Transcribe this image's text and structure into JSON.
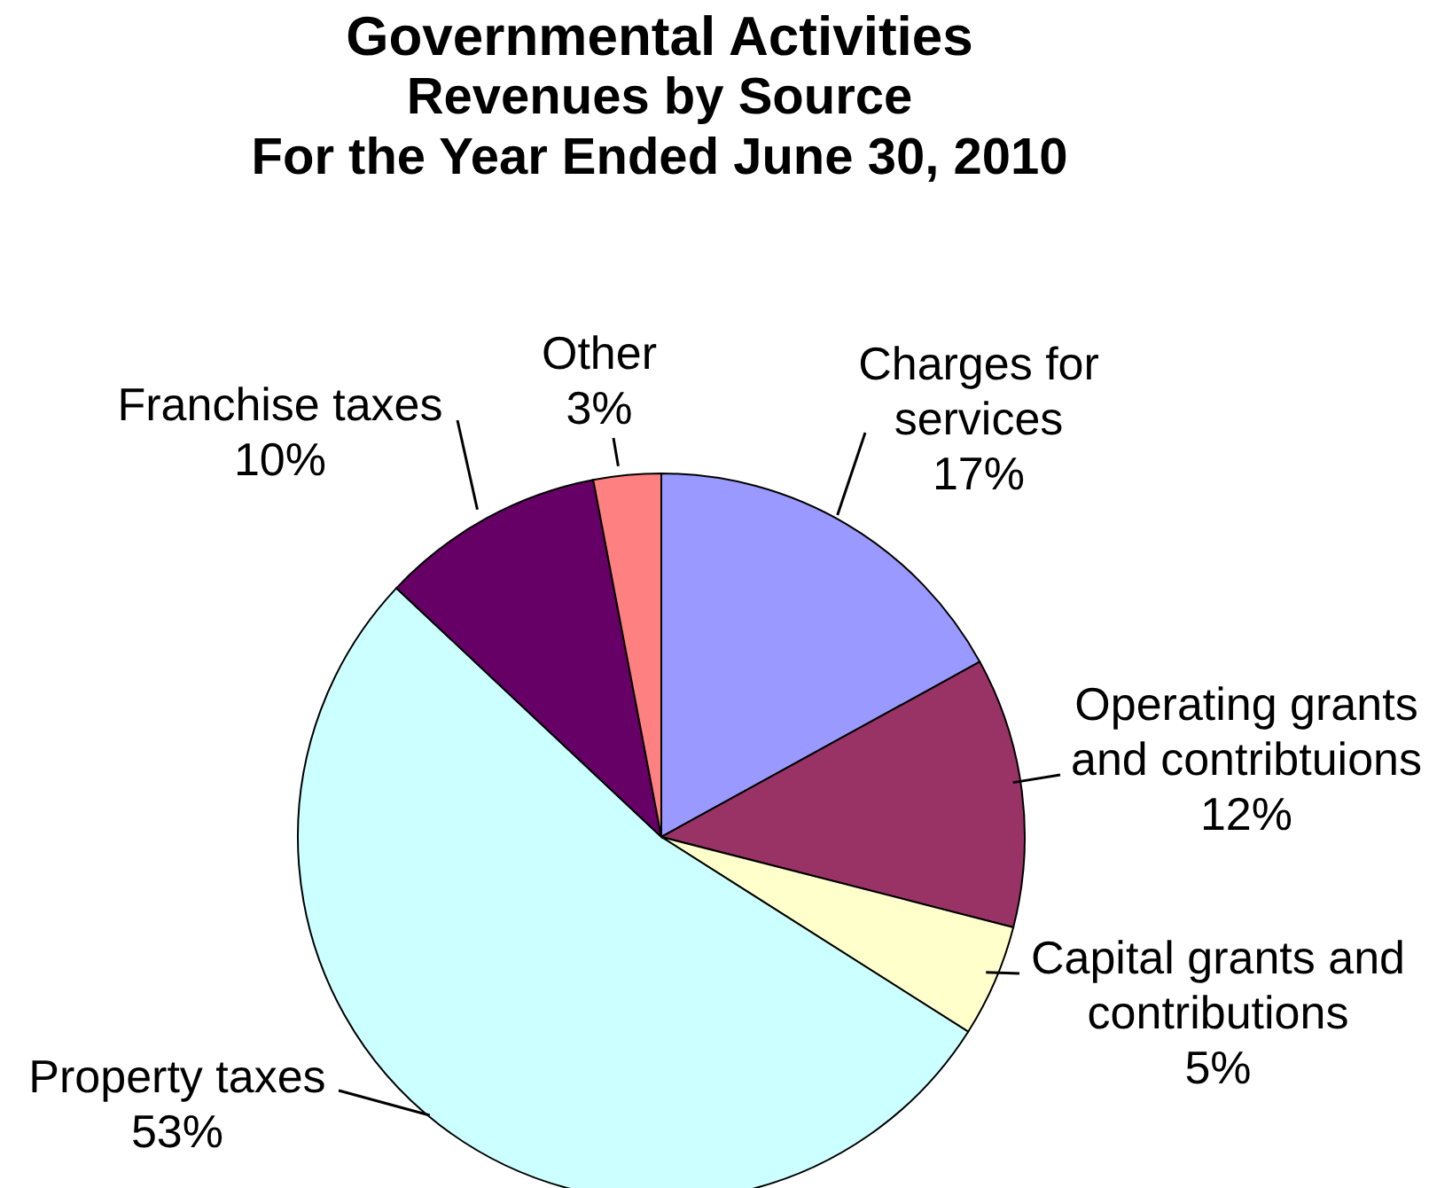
{
  "chart_data": {
    "type": "pie",
    "title": "Governmental Activities",
    "subtitle": "Revenues by Source\nFor the Year Ended June 30, 2010",
    "categories": [
      "Charges for services",
      "Operating grants and contribtuions",
      "Capital grants and contributions",
      "Property taxes",
      "Franchise taxes",
      "Other"
    ],
    "values": [
      17,
      12,
      5,
      53,
      10,
      3
    ],
    "colors": [
      "#9999ff",
      "#993366",
      "#ffffcc",
      "#ccffff",
      "#660066",
      "#ff8080"
    ],
    "value_labels": [
      "17%",
      "12%",
      "5%",
      "53%",
      "10%",
      "3%"
    ],
    "legend": false
  }
}
